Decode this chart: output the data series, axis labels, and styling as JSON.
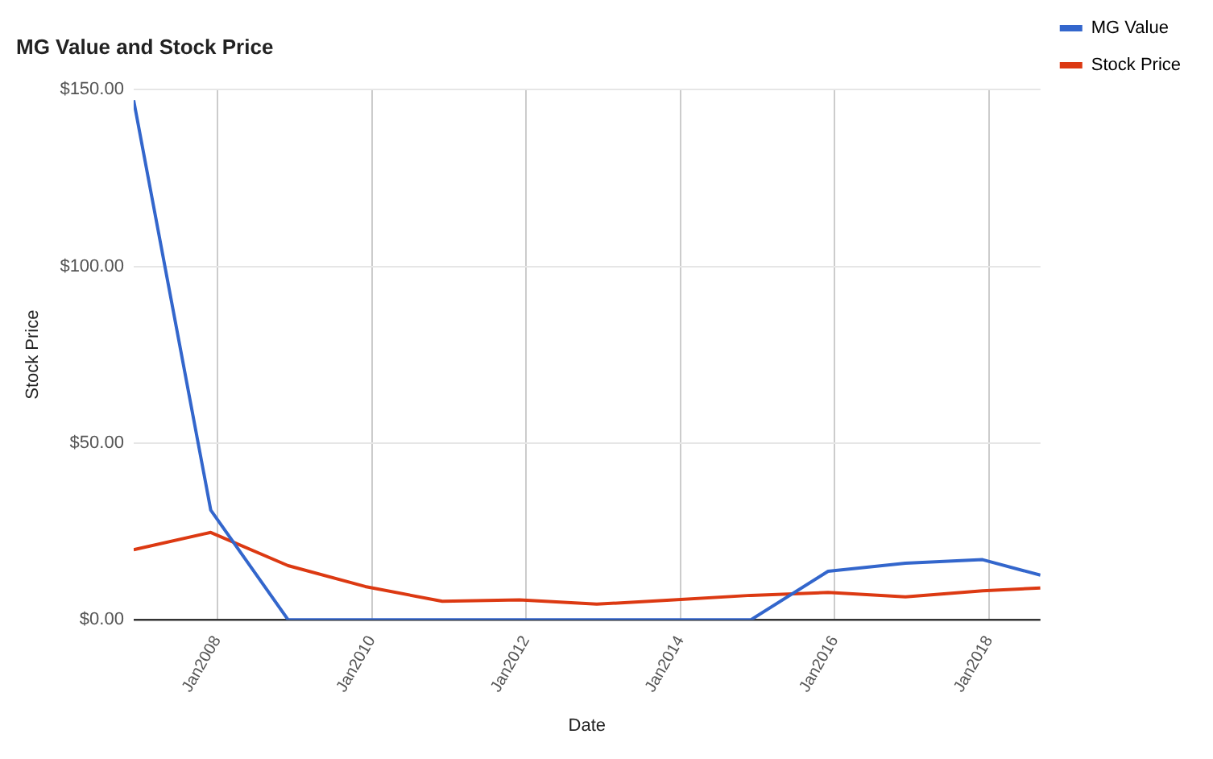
{
  "chart_data": {
    "type": "line",
    "title": "MG Value and Stock Price",
    "xlabel": "Date",
    "ylabel": "Stock Price",
    "x": [
      "2006-12",
      "2007-12",
      "2008-12",
      "2009-12",
      "2010-12",
      "2011-12",
      "2012-12",
      "2013-12",
      "2014-12",
      "2015-12",
      "2016-12",
      "2017-12",
      "2018-09"
    ],
    "series": [
      {
        "name": "MG Value",
        "color": "#3366cc",
        "values": [
          147,
          31,
          0,
          0,
          0,
          0,
          0,
          0,
          0,
          13.7,
          16,
          17,
          12.6
        ]
      },
      {
        "name": "Stock Price",
        "color": "#dc3912",
        "values": [
          19.8,
          24.7,
          15.3,
          9.4,
          5.2,
          5.6,
          4.4,
          5.6,
          6.9,
          7.7,
          6.5,
          8.2,
          9
        ]
      }
    ],
    "xlim": [
      "2006-12",
      "2018-09"
    ],
    "xticks": [
      {
        "value": "2008-01",
        "label": "Jan2008"
      },
      {
        "value": "2010-01",
        "label": "Jan2010"
      },
      {
        "value": "2012-01",
        "label": "Jan2012"
      },
      {
        "value": "2014-01",
        "label": "Jan2014"
      },
      {
        "value": "2016-01",
        "label": "Jan2016"
      },
      {
        "value": "2018-01",
        "label": "Jan2018"
      }
    ],
    "ylim": [
      0,
      150
    ],
    "yticks": [
      {
        "value": 0,
        "label": "$0.00"
      },
      {
        "value": 50,
        "label": "$50.00"
      },
      {
        "value": 100,
        "label": "$100.00"
      },
      {
        "value": 150,
        "label": "$150.00"
      }
    ],
    "grid": true,
    "legend": "right",
    "marker": "none",
    "line_style": "solid"
  }
}
